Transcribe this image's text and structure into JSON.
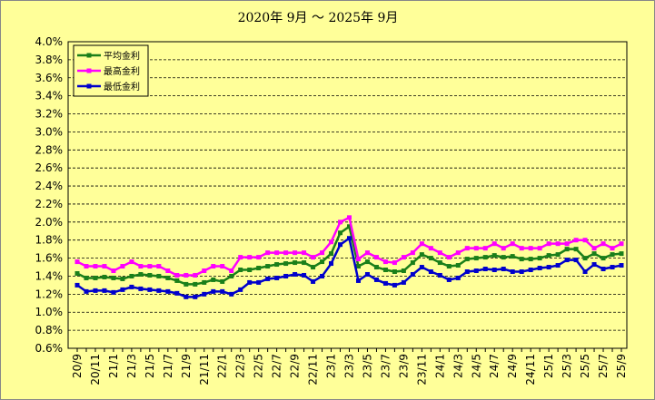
{
  "chart_data": {
    "type": "line",
    "title": "2020年 9月 ～ 2025年 9月",
    "categories": [
      "20/9",
      null,
      "20/11",
      null,
      "21/1",
      null,
      "21/3",
      null,
      "21/5",
      null,
      "21/7",
      null,
      "21/9",
      null,
      "21/11",
      null,
      "22/1",
      null,
      "22/3",
      null,
      "22/5",
      null,
      "22/7",
      null,
      "22/9",
      null,
      "22/11",
      null,
      "23/1",
      null,
      "23/3",
      null,
      "23/5",
      null,
      "23/7",
      null,
      "23/9",
      null,
      "23/11",
      null,
      "24/1",
      null,
      "24/3",
      null,
      "24/5",
      null,
      "24/7",
      null,
      "24/9",
      null,
      "24/11",
      null,
      "25/1",
      null,
      "25/3",
      null,
      "25/5",
      null,
      "25/7",
      null,
      "25/9"
    ],
    "series": [
      {
        "name": "平均金利",
        "color": "#1a7f1a",
        "values": [
          1.43,
          1.38,
          1.38,
          1.39,
          1.38,
          1.37,
          1.4,
          1.42,
          1.41,
          1.4,
          1.38,
          1.35,
          1.31,
          1.31,
          1.33,
          1.36,
          1.34,
          1.4,
          1.47,
          1.47,
          1.49,
          1.51,
          1.53,
          1.54,
          1.55,
          1.55,
          1.5,
          1.56,
          1.65,
          1.88,
          1.95,
          1.51,
          1.56,
          1.5,
          1.47,
          1.45,
          1.46,
          1.55,
          1.64,
          1.6,
          1.55,
          1.51,
          1.52,
          1.59,
          1.6,
          1.61,
          1.63,
          1.61,
          1.62,
          1.59,
          1.59,
          1.6,
          1.63,
          1.64,
          1.7,
          1.7,
          1.6,
          1.65,
          1.6,
          1.64,
          1.65
        ]
      },
      {
        "name": "最高金利",
        "color": "#ff00ff",
        "values": [
          1.56,
          1.51,
          1.51,
          1.51,
          1.46,
          1.51,
          1.56,
          1.51,
          1.51,
          1.51,
          1.46,
          1.41,
          1.41,
          1.41,
          1.46,
          1.51,
          1.51,
          1.46,
          1.61,
          1.61,
          1.61,
          1.66,
          1.66,
          1.66,
          1.66,
          1.66,
          1.61,
          1.66,
          1.78,
          2.0,
          2.05,
          1.59,
          1.66,
          1.61,
          1.56,
          1.55,
          1.61,
          1.66,
          1.76,
          1.71,
          1.66,
          1.61,
          1.66,
          1.71,
          1.71,
          1.71,
          1.76,
          1.71,
          1.76,
          1.71,
          1.71,
          1.71,
          1.76,
          1.76,
          1.76,
          1.8,
          1.8,
          1.71,
          1.76,
          1.71,
          1.76
        ]
      },
      {
        "name": "最低金利",
        "color": "#0000cc",
        "values": [
          1.3,
          1.23,
          1.24,
          1.24,
          1.22,
          1.25,
          1.28,
          1.26,
          1.25,
          1.24,
          1.23,
          1.21,
          1.17,
          1.17,
          1.2,
          1.23,
          1.23,
          1.2,
          1.25,
          1.33,
          1.33,
          1.37,
          1.38,
          1.4,
          1.42,
          1.41,
          1.34,
          1.4,
          1.54,
          1.75,
          1.82,
          1.35,
          1.42,
          1.36,
          1.32,
          1.3,
          1.33,
          1.42,
          1.5,
          1.45,
          1.41,
          1.36,
          1.38,
          1.45,
          1.46,
          1.48,
          1.47,
          1.48,
          1.45,
          1.45,
          1.47,
          1.49,
          1.5,
          1.52,
          1.58,
          1.58,
          1.45,
          1.53,
          1.48,
          1.5,
          1.52
        ]
      }
    ],
    "ylim": [
      0.6,
      4.0
    ],
    "yticks": [
      {
        "value": 0.6,
        "label": "0.6%"
      },
      {
        "value": 0.8,
        "label": "0.8%"
      },
      {
        "value": 1.0,
        "label": "1.0%"
      },
      {
        "value": 1.2,
        "label": "1.2%"
      },
      {
        "value": 1.4,
        "label": "1.4%"
      },
      {
        "value": 1.6,
        "label": "1.6%"
      },
      {
        "value": 1.8,
        "label": "1.8%"
      },
      {
        "value": 2.0,
        "label": "2.0%"
      },
      {
        "value": 2.2,
        "label": "2.2%"
      },
      {
        "value": 2.4,
        "label": "2.4%"
      },
      {
        "value": 2.6,
        "label": "2.6%"
      },
      {
        "value": 2.8,
        "label": "2.8%"
      },
      {
        "value": 3.0,
        "label": "3.0%"
      },
      {
        "value": 3.2,
        "label": "3.2%"
      },
      {
        "value": 3.4,
        "label": "3.4%"
      },
      {
        "value": 3.6,
        "label": "3.6%"
      },
      {
        "value": 3.8,
        "label": "3.8%"
      },
      {
        "value": 4.0,
        "label": "4.0%"
      }
    ],
    "grid": true,
    "legend": "upper left",
    "background": "#ffff99"
  }
}
